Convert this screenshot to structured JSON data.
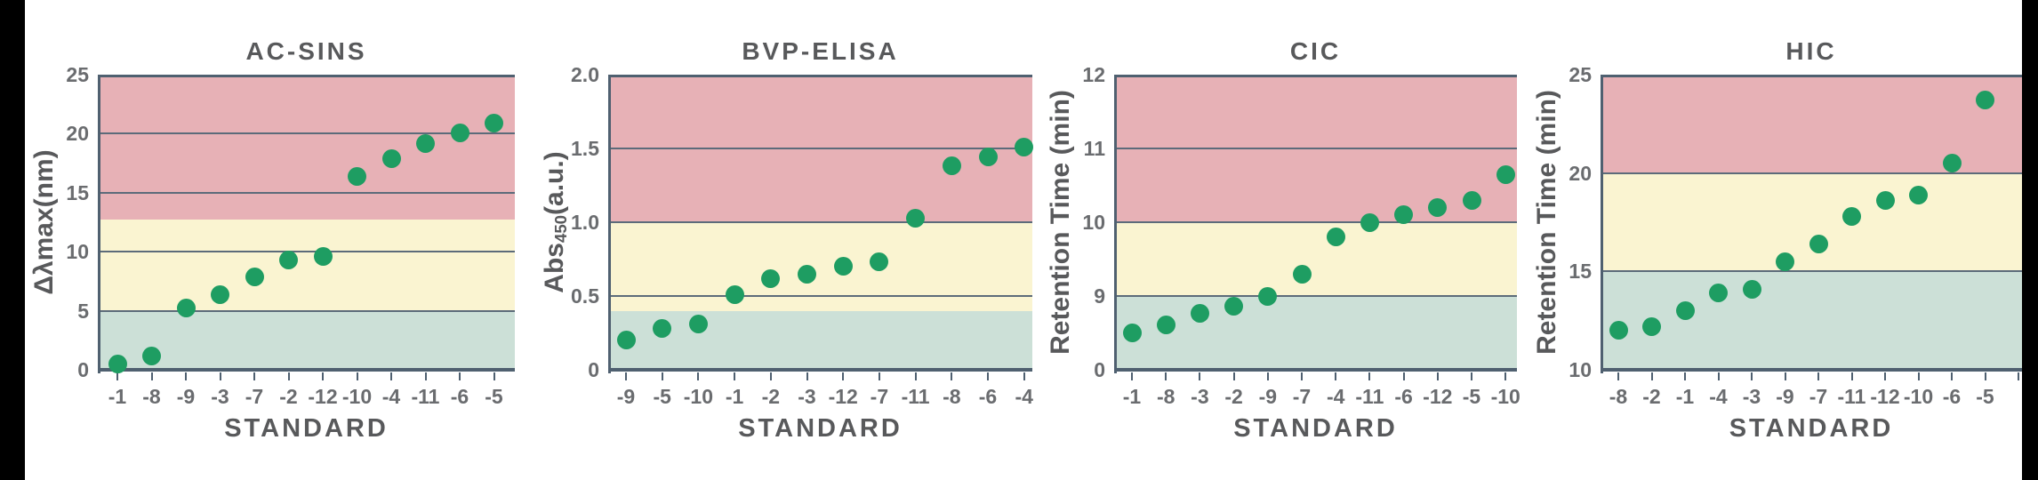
{
  "figure": {
    "background": "#ffffff",
    "left_black_bar": true,
    "right_black_bar": true
  },
  "colors": {
    "band_red": "#E7B1B6",
    "band_yellow": "#FAF4D1",
    "band_green": "#CCE0D7",
    "dot_green": "#1E9D62",
    "axis": "#4F6070",
    "grid": "#5C6B7A",
    "title_text": "#58595B",
    "tick_text": "#6A6C6F"
  },
  "chart_data": [
    {
      "type": "scatter",
      "title": "AC-SINS",
      "xlabel": "STANDARD",
      "ylabel": {
        "pre": "Δλmax(nm)",
        "sub": "",
        "post": ""
      },
      "ylim": [
        0,
        25
      ],
      "y_ticks": [
        0,
        5,
        10,
        15,
        20,
        25
      ],
      "y_tick_labels": [
        "0",
        "5",
        "10",
        "15",
        "20",
        "25"
      ],
      "grid": "horizontal gridlines at ticks",
      "legend": "none",
      "bands": [
        {
          "from": 0,
          "to": 5,
          "color": "green"
        },
        {
          "from": 5,
          "to": 12.7,
          "color": "yellow"
        },
        {
          "from": 12.7,
          "to": 25,
          "color": "red"
        }
      ],
      "categories": [
        "-1",
        "-8",
        "-9",
        "-3",
        "-7",
        "-2",
        "-12",
        "-10",
        "-4",
        "-11",
        "-6",
        "-5"
      ],
      "values": [
        0.5,
        1.2,
        5.2,
        6.4,
        7.9,
        9.3,
        9.6,
        16.4,
        17.9,
        19.2,
        20.1,
        20.9
      ]
    },
    {
      "type": "scatter",
      "title": "BVP-ELISA",
      "xlabel": "STANDARD",
      "ylabel": {
        "pre": "Abs",
        "sub": "450",
        "post": "(a.u.)"
      },
      "ylim": [
        0,
        2.0
      ],
      "y_ticks": [
        0,
        0.5,
        1.0,
        1.5,
        2.0
      ],
      "y_tick_labels": [
        "0",
        "0.5",
        "1.0",
        "1.5",
        "2.0"
      ],
      "grid": "horizontal gridlines at ticks",
      "legend": "none",
      "bands": [
        {
          "from": 0,
          "to": 0.4,
          "color": "green"
        },
        {
          "from": 0.4,
          "to": 1.0,
          "color": "yellow"
        },
        {
          "from": 1.0,
          "to": 2.0,
          "color": "red"
        }
      ],
      "categories": [
        "-9",
        "-5",
        "-10",
        "-1",
        "-2",
        "-3",
        "-12",
        "-7",
        "-11",
        "-8",
        "-6",
        "-4"
      ],
      "values": [
        0.2,
        0.28,
        0.31,
        0.51,
        0.62,
        0.65,
        0.7,
        0.73,
        1.03,
        1.38,
        1.44,
        1.51
      ]
    },
    {
      "type": "scatter",
      "title": "CIC",
      "xlabel": "STANDARD",
      "ylabel": {
        "pre": "Retention Time (min)",
        "sub": "",
        "post": ""
      },
      "ylim": [
        0,
        12
      ],
      "y_ticks": [
        0,
        9,
        10,
        11,
        12
      ],
      "y_tick_labels": [
        "0",
        "9",
        "10",
        "11",
        "12"
      ],
      "axis_note": "broken y-axis: 0-9 segment compressed to one gridline interval",
      "grid": "horizontal gridlines at ticks",
      "legend": "none",
      "bands": [
        {
          "from": 0,
          "to": 9,
          "color": "green"
        },
        {
          "from": 9,
          "to": 10,
          "color": "yellow"
        },
        {
          "from": 10,
          "to": 12,
          "color": "red"
        }
      ],
      "categories": [
        "-1",
        "-8",
        "-3",
        "-2",
        "-9",
        "-7",
        "-4",
        "-11",
        "-6",
        "-12",
        "-5",
        "-10"
      ],
      "values": [
        4.5,
        5.5,
        6.9,
        7.7,
        9.0,
        9.3,
        9.8,
        10.0,
        10.1,
        10.2,
        10.3,
        10.65
      ]
    },
    {
      "type": "scatter",
      "title": "HIC",
      "xlabel": "STANDARD",
      "ylabel": {
        "pre": "Retention Time (min)",
        "sub": "",
        "post": ""
      },
      "ylim": [
        10,
        25
      ],
      "y_ticks": [
        10,
        15,
        20,
        25
      ],
      "y_tick_labels": [
        "10",
        "15",
        "20",
        "25"
      ],
      "grid": "horizontal gridlines at ticks",
      "legend": "none",
      "right_edge_clipped": true,
      "bands": [
        {
          "from": 10,
          "to": 15,
          "color": "green"
        },
        {
          "from": 15,
          "to": 20,
          "color": "yellow"
        },
        {
          "from": 20,
          "to": 25,
          "color": "red"
        }
      ],
      "categories": [
        "-8",
        "-2",
        "-1",
        "-4",
        "-3",
        "-9",
        "-7",
        "-11",
        "-12",
        "-10",
        "-6",
        "-5"
      ],
      "values": [
        12.0,
        12.2,
        13.0,
        13.9,
        14.1,
        15.5,
        16.4,
        17.8,
        18.6,
        18.9,
        20.5,
        23.7
      ]
    }
  ]
}
